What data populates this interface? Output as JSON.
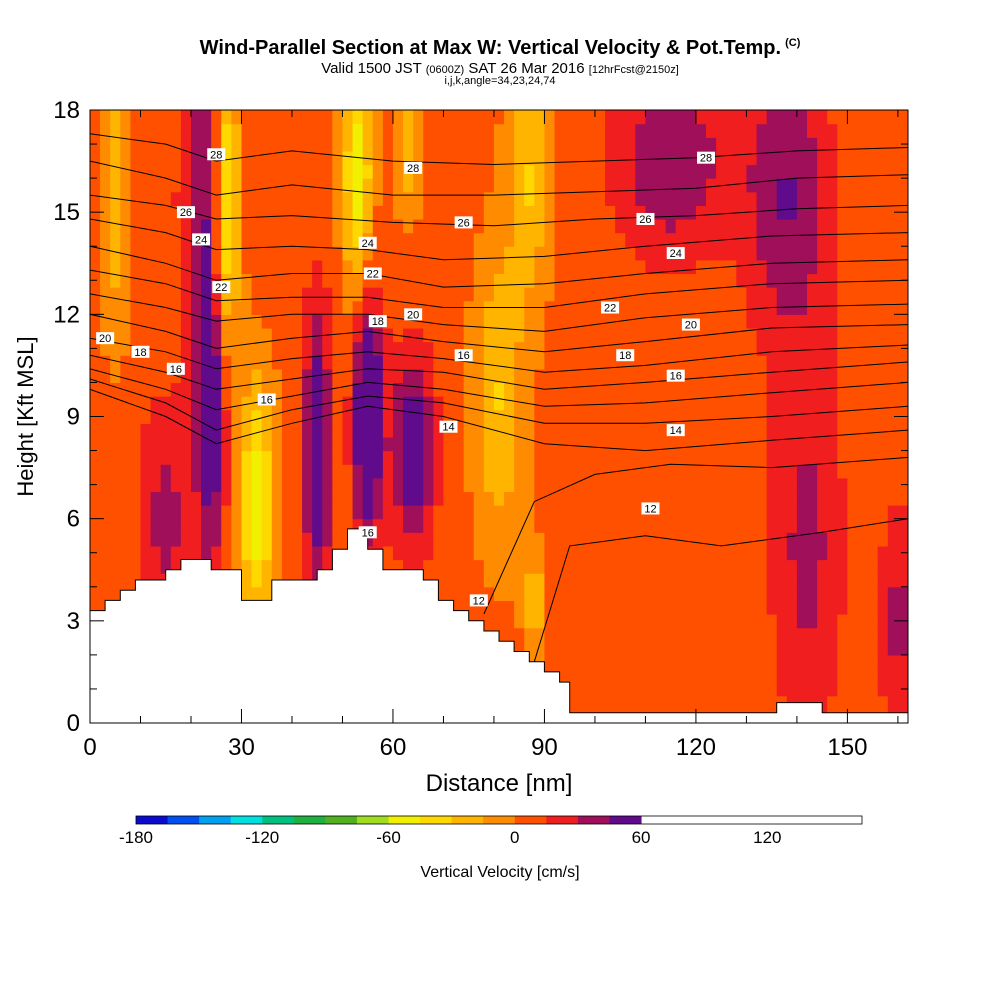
{
  "header": {
    "title": "Wind-Parallel Section at Max W: Vertical Velocity & Pot.Temp.",
    "copyright": "(C)",
    "valid_prefix": "Valid 1500 JST",
    "valid_utc": "(0600Z)",
    "valid_date": "SAT 26 Mar 2016",
    "forecast": "[12hrFcst@2150z]",
    "indices": "i,j,k,angle=34,23,24,74"
  },
  "chart_data": {
    "type": "heatmap",
    "xlabel": "Distance [nm]",
    "ylabel": "Height [Kft MSL]",
    "xlim": [
      0,
      162
    ],
    "ylim": [
      0,
      18
    ],
    "xticks": [
      0,
      30,
      60,
      90,
      120,
      150
    ],
    "yticks": [
      0,
      3,
      6,
      9,
      12,
      15,
      18
    ],
    "colorbar": {
      "label": "Vertical Velocity [cm/s]",
      "ticks": [
        -180,
        -120,
        -60,
        0,
        60,
        120
      ],
      "range": [
        -180,
        150
      ],
      "step": 15,
      "colors": [
        "#0a0ad0",
        "#0050f0",
        "#009ff0",
        "#00e0e0",
        "#00c080",
        "#20b040",
        "#50b020",
        "#a0dc20",
        "#f0f000",
        "#ffd800",
        "#ffb400",
        "#ff8c00",
        "#ff5000",
        "#f01e1e",
        "#a0105a",
        "#600a8c"
      ]
    },
    "field": {
      "background_value": 5,
      "features": [
        {
          "x": 5,
          "y": 15.5,
          "value": -30,
          "sx": 2,
          "sy": 3.0
        },
        {
          "x": 27,
          "y": 15.0,
          "value": -60,
          "sx": 1.8,
          "sy": 3.0
        },
        {
          "x": 33,
          "y": 6.5,
          "value": -60,
          "sx": 2.5,
          "sy": 2.5
        },
        {
          "x": 53,
          "y": 16.0,
          "value": -60,
          "sx": 2.0,
          "sy": 2.5
        },
        {
          "x": 63,
          "y": 17.0,
          "value": -30,
          "sx": 2.0,
          "sy": 1.5
        },
        {
          "x": 81,
          "y": 9.5,
          "value": -35,
          "sx": 3.5,
          "sy": 3.0
        },
        {
          "x": 87,
          "y": 16.0,
          "value": -35,
          "sx": 3.0,
          "sy": 2.5
        },
        {
          "x": 88,
          "y": 3.5,
          "value": -35,
          "sx": 1.5,
          "sy": 1.0
        },
        {
          "x": 24,
          "y": 9.0,
          "value": 60,
          "sx": 2.0,
          "sy": 3.0
        },
        {
          "x": 45,
          "y": 8.0,
          "value": 60,
          "sx": 2.0,
          "sy": 3.0
        },
        {
          "x": 55,
          "y": 9.0,
          "value": 80,
          "sx": 2.0,
          "sy": 2.5
        },
        {
          "x": 64,
          "y": 8.0,
          "value": 60,
          "sx": 3.0,
          "sy": 2.0
        },
        {
          "x": 22,
          "y": 15.5,
          "value": 40,
          "sx": 3.0,
          "sy": 3.0
        },
        {
          "x": 115,
          "y": 16.5,
          "value": 40,
          "sx": 8.0,
          "sy": 2.0
        },
        {
          "x": 138,
          "y": 15.5,
          "value": 40,
          "sx": 6.0,
          "sy": 3.0
        },
        {
          "x": 15,
          "y": 6.0,
          "value": 30,
          "sx": 4.0,
          "sy": 2.5
        },
        {
          "x": 142,
          "y": 5.0,
          "value": 30,
          "sx": 5.0,
          "sy": 4.0
        },
        {
          "x": 160,
          "y": 3.0,
          "value": 30,
          "sx": 2.5,
          "sy": 2.5
        }
      ]
    },
    "terrain": [
      [
        0,
        3.3
      ],
      [
        3,
        3.3
      ],
      [
        3,
        3.6
      ],
      [
        6,
        3.6
      ],
      [
        6,
        3.9
      ],
      [
        9,
        3.9
      ],
      [
        9,
        4.2
      ],
      [
        15,
        4.2
      ],
      [
        15,
        4.5
      ],
      [
        18,
        4.5
      ],
      [
        18,
        4.8
      ],
      [
        24,
        4.8
      ],
      [
        24,
        4.5
      ],
      [
        30,
        4.5
      ],
      [
        30,
        3.6
      ],
      [
        36,
        3.6
      ],
      [
        36,
        4.2
      ],
      [
        45,
        4.2
      ],
      [
        45,
        4.5
      ],
      [
        48,
        4.5
      ],
      [
        48,
        5.1
      ],
      [
        51,
        5.1
      ],
      [
        51,
        5.7
      ],
      [
        55,
        5.7
      ],
      [
        55,
        5.1
      ],
      [
        58,
        5.1
      ],
      [
        58,
        4.5
      ],
      [
        66,
        4.5
      ],
      [
        66,
        4.2
      ],
      [
        69,
        4.2
      ],
      [
        69,
        3.6
      ],
      [
        72,
        3.6
      ],
      [
        72,
        3.3
      ],
      [
        75,
        3.3
      ],
      [
        75,
        3.0
      ],
      [
        78,
        3.0
      ],
      [
        78,
        2.7
      ],
      [
        81,
        2.7
      ],
      [
        81,
        2.4
      ],
      [
        84,
        2.4
      ],
      [
        84,
        2.1
      ],
      [
        87,
        2.1
      ],
      [
        87,
        1.8
      ],
      [
        90,
        1.8
      ],
      [
        90,
        1.5
      ],
      [
        93,
        1.5
      ],
      [
        93,
        1.2
      ],
      [
        95,
        1.2
      ],
      [
        95,
        0.3
      ],
      [
        136,
        0.3
      ],
      [
        136,
        0.6
      ],
      [
        145,
        0.6
      ],
      [
        145,
        0.3
      ],
      [
        162,
        0.3
      ]
    ],
    "theta_contours": [
      {
        "value": 28,
        "points": [
          [
            0,
            17.3
          ],
          [
            15,
            17.0
          ],
          [
            25,
            16.5
          ],
          [
            40,
            16.8
          ],
          [
            60,
            16.5
          ],
          [
            80,
            16.4
          ],
          [
            100,
            16.5
          ],
          [
            120,
            16.6
          ],
          [
            140,
            16.8
          ],
          [
            162,
            16.9
          ]
        ]
      },
      {
        "value": 27,
        "points": [
          [
            0,
            16.5
          ],
          [
            15,
            16.0
          ],
          [
            25,
            15.5
          ],
          [
            40,
            15.8
          ],
          [
            60,
            15.5
          ],
          [
            80,
            15.5
          ],
          [
            100,
            15.6
          ],
          [
            120,
            15.7
          ],
          [
            140,
            16.0
          ],
          [
            162,
            16.1
          ]
        ]
      },
      {
        "value": 26,
        "points": [
          [
            0,
            15.5
          ],
          [
            15,
            15.2
          ],
          [
            25,
            14.8
          ],
          [
            40,
            14.9
          ],
          [
            60,
            14.7
          ],
          [
            80,
            14.6
          ],
          [
            100,
            14.8
          ],
          [
            120,
            14.9
          ],
          [
            140,
            15.1
          ],
          [
            162,
            15.2
          ]
        ]
      },
      {
        "value": 25,
        "points": [
          [
            0,
            14.8
          ],
          [
            15,
            14.4
          ],
          [
            25,
            13.9
          ],
          [
            40,
            14.0
          ],
          [
            55,
            13.9
          ],
          [
            70,
            13.6
          ],
          [
            90,
            13.7
          ],
          [
            110,
            14.0
          ],
          [
            135,
            14.3
          ],
          [
            162,
            14.4
          ]
        ]
      },
      {
        "value": 24,
        "points": [
          [
            0,
            14.0
          ],
          [
            15,
            13.5
          ],
          [
            25,
            13.0
          ],
          [
            40,
            13.2
          ],
          [
            55,
            13.2
          ],
          [
            70,
            12.8
          ],
          [
            90,
            12.9
          ],
          [
            110,
            13.2
          ],
          [
            135,
            13.5
          ],
          [
            162,
            13.6
          ]
        ]
      },
      {
        "value": 23,
        "points": [
          [
            0,
            13.3
          ],
          [
            15,
            12.9
          ],
          [
            25,
            12.4
          ],
          [
            40,
            12.5
          ],
          [
            55,
            12.5
          ],
          [
            70,
            12.2
          ],
          [
            90,
            12.2
          ],
          [
            110,
            12.6
          ],
          [
            135,
            12.9
          ],
          [
            162,
            13.0
          ]
        ]
      },
      {
        "value": 22,
        "points": [
          [
            0,
            12.6
          ],
          [
            15,
            12.2
          ],
          [
            25,
            11.8
          ],
          [
            40,
            12.0
          ],
          [
            55,
            12.0
          ],
          [
            70,
            11.7
          ],
          [
            90,
            11.5
          ],
          [
            110,
            11.9
          ],
          [
            135,
            12.2
          ],
          [
            162,
            12.3
          ]
        ]
      },
      {
        "value": 21,
        "points": [
          [
            0,
            12.0
          ],
          [
            15,
            11.5
          ],
          [
            25,
            11.0
          ],
          [
            40,
            11.3
          ],
          [
            55,
            11.5
          ],
          [
            70,
            11.2
          ],
          [
            90,
            10.9
          ],
          [
            110,
            11.2
          ],
          [
            135,
            11.6
          ],
          [
            162,
            11.7
          ]
        ]
      },
      {
        "value": 20,
        "points": [
          [
            0,
            11.3
          ],
          [
            15,
            10.9
          ],
          [
            25,
            10.4
          ],
          [
            40,
            10.7
          ],
          [
            55,
            10.9
          ],
          [
            70,
            10.7
          ],
          [
            90,
            10.3
          ],
          [
            110,
            10.5
          ],
          [
            135,
            10.9
          ],
          [
            162,
            11.1
          ]
        ]
      },
      {
        "value": 19,
        "points": [
          [
            0,
            10.8
          ],
          [
            15,
            10.3
          ],
          [
            25,
            9.8
          ],
          [
            40,
            10.1
          ],
          [
            55,
            10.4
          ],
          [
            70,
            10.3
          ],
          [
            90,
            9.8
          ],
          [
            110,
            10.0
          ],
          [
            135,
            10.3
          ],
          [
            162,
            10.6
          ]
        ]
      },
      {
        "value": 18,
        "points": [
          [
            0,
            10.4
          ],
          [
            15,
            9.8
          ],
          [
            25,
            9.2
          ],
          [
            40,
            9.6
          ],
          [
            55,
            10.0
          ],
          [
            70,
            9.8
          ],
          [
            90,
            9.3
          ],
          [
            110,
            9.4
          ],
          [
            135,
            9.7
          ],
          [
            162,
            10.0
          ]
        ]
      },
      {
        "value": 17,
        "points": [
          [
            0,
            10.1
          ],
          [
            15,
            9.4
          ],
          [
            25,
            8.6
          ],
          [
            40,
            9.2
          ],
          [
            55,
            9.6
          ],
          [
            70,
            9.4
          ],
          [
            90,
            8.8
          ],
          [
            110,
            8.8
          ],
          [
            135,
            9.0
          ],
          [
            162,
            9.3
          ]
        ]
      },
      {
        "value": 16,
        "points": [
          [
            0,
            9.8
          ],
          [
            15,
            9.0
          ],
          [
            25,
            8.2
          ],
          [
            40,
            8.8
          ],
          [
            55,
            9.3
          ],
          [
            70,
            9.0
          ],
          [
            90,
            8.2
          ],
          [
            110,
            8.0
          ],
          [
            135,
            8.3
          ],
          [
            162,
            8.6
          ]
        ]
      },
      {
        "value": 14,
        "points": [
          [
            78,
            3.2
          ],
          [
            88,
            6.5
          ],
          [
            100,
            7.3
          ],
          [
            115,
            7.6
          ],
          [
            135,
            7.5
          ],
          [
            162,
            7.8
          ]
        ]
      },
      {
        "value": 12,
        "points": [
          [
            88,
            1.8
          ],
          [
            95,
            5.2
          ],
          [
            110,
            5.5
          ],
          [
            125,
            5.2
          ],
          [
            145,
            5.6
          ],
          [
            162,
            6.0
          ]
        ]
      }
    ],
    "contour_labels": [
      {
        "text": "28",
        "x": 25,
        "y": 16.7
      },
      {
        "text": "28",
        "x": 64,
        "y": 16.3
      },
      {
        "text": "28",
        "x": 122,
        "y": 16.6
      },
      {
        "text": "26",
        "x": 19,
        "y": 15.0
      },
      {
        "text": "26",
        "x": 74,
        "y": 14.7
      },
      {
        "text": "26",
        "x": 110,
        "y": 14.8
      },
      {
        "text": "24",
        "x": 22,
        "y": 14.2
      },
      {
        "text": "24",
        "x": 55,
        "y": 14.1
      },
      {
        "text": "24",
        "x": 116,
        "y": 13.8
      },
      {
        "text": "22",
        "x": 26,
        "y": 12.8
      },
      {
        "text": "22",
        "x": 56,
        "y": 13.2
      },
      {
        "text": "22",
        "x": 103,
        "y": 12.2
      },
      {
        "text": "20",
        "x": 3,
        "y": 11.3
      },
      {
        "text": "20",
        "x": 64,
        "y": 12.0
      },
      {
        "text": "20",
        "x": 119,
        "y": 11.7
      },
      {
        "text": "18",
        "x": 10,
        "y": 10.9
      },
      {
        "text": "18",
        "x": 57,
        "y": 11.8
      },
      {
        "text": "18",
        "x": 106,
        "y": 10.8
      },
      {
        "text": "16",
        "x": 17,
        "y": 10.4
      },
      {
        "text": "16",
        "x": 35,
        "y": 9.5
      },
      {
        "text": "16",
        "x": 74,
        "y": 10.8
      },
      {
        "text": "16",
        "x": 116,
        "y": 10.2
      },
      {
        "text": "16",
        "x": 55,
        "y": 5.6
      },
      {
        "text": "14",
        "x": 71,
        "y": 8.7
      },
      {
        "text": "14",
        "x": 116,
        "y": 8.6
      },
      {
        "text": "12",
        "x": 111,
        "y": 6.3
      },
      {
        "text": "12",
        "x": 77,
        "y": 3.6
      }
    ]
  }
}
